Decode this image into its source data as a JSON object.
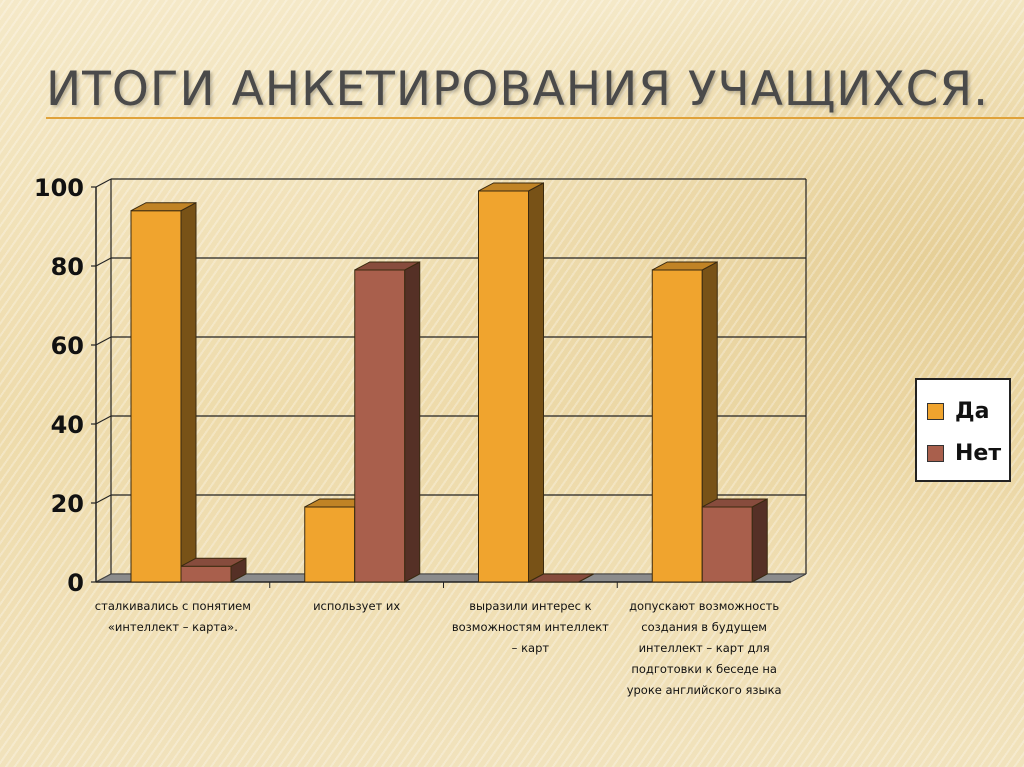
{
  "page": {
    "title": "ИТОГИ АНКЕТИРОВАНИЯ УЧАЩИХСЯ."
  },
  "colors": {
    "series_da": "#f0a42e",
    "series_net": "#a95f4c",
    "grid": "#222222",
    "floor": "#8c8c8c"
  },
  "chart_data": {
    "type": "bar",
    "style": "3d-clustered",
    "categories": [
      [
        "сталкивались с понятием",
        "«интеллект – карта»."
      ],
      [
        "использует их"
      ],
      [
        "выразили интерес к",
        "возможностям интеллект",
        "– карт"
      ],
      [
        "допускают возможность",
        "создания в будущем",
        "интеллект – карт для",
        "подготовки к беседе на",
        "уроке английского языка"
      ]
    ],
    "series": [
      {
        "name": "Да",
        "values": [
          94,
          19,
          99,
          79
        ]
      },
      {
        "name": "Нет",
        "values": [
          4,
          79,
          0,
          19
        ]
      }
    ],
    "ylim": [
      0,
      100
    ],
    "yticks": [
      "0",
      "20",
      "40",
      "60",
      "80",
      "100"
    ],
    "grid": true,
    "legend": "right"
  }
}
